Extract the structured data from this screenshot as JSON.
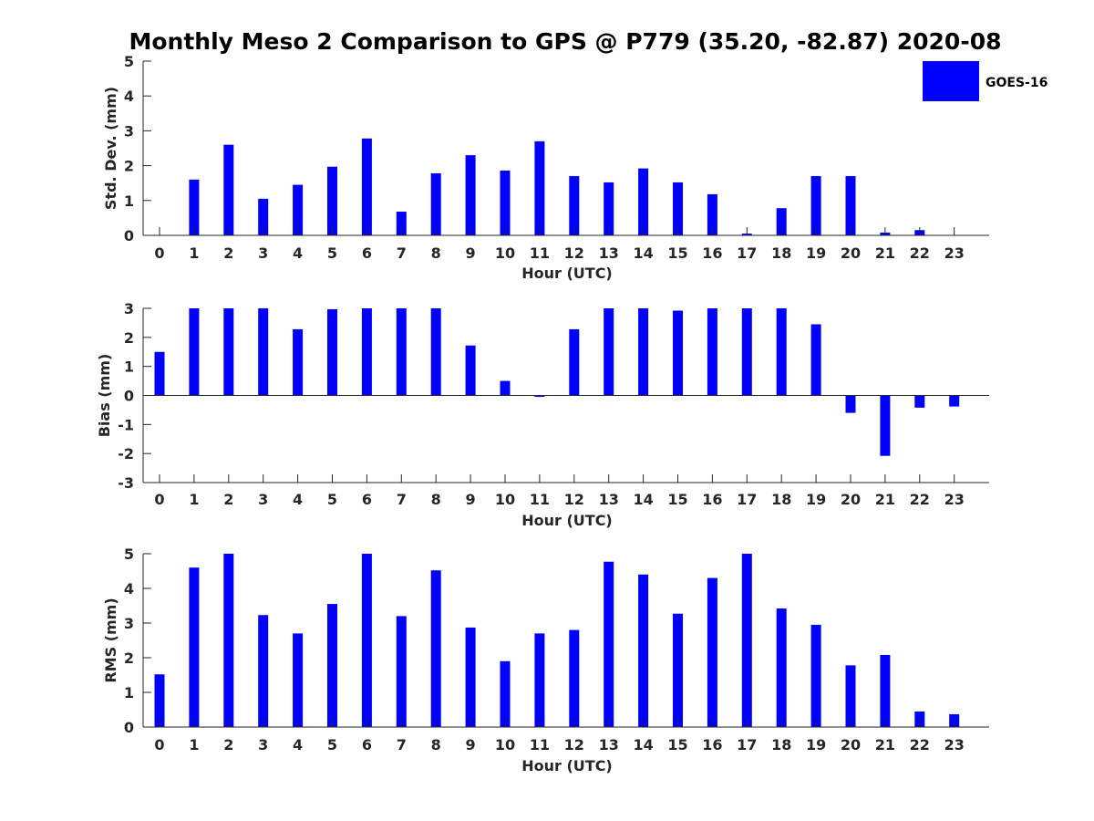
{
  "title": "Monthly Meso 2 Comparison to GPS @ P779 (35.20, -82.87) 2020-08",
  "chart_data": [
    {
      "type": "bar",
      "categories": [
        "0",
        "1",
        "2",
        "3",
        "4",
        "5",
        "6",
        "7",
        "8",
        "9",
        "10",
        "11",
        "12",
        "13",
        "14",
        "15",
        "16",
        "17",
        "18",
        "19",
        "20",
        "21",
        "22",
        "23"
      ],
      "xlabel": "Hour (UTC)",
      "ylabel": "Std. Dev. (mm)",
      "ylim": [
        0,
        5
      ],
      "yticks": [
        "0",
        "1",
        "2",
        "3",
        "4",
        "5"
      ],
      "grid": false,
      "series": [
        {
          "name": "GOES-16",
          "values": [
            0,
            1.6,
            2.6,
            1.05,
            1.45,
            1.97,
            2.78,
            0.68,
            1.78,
            2.3,
            1.86,
            2.7,
            1.7,
            1.52,
            1.92,
            1.52,
            1.18,
            0.05,
            0.78,
            1.7,
            1.7,
            0.08,
            0.15,
            0
          ]
        }
      ],
      "legend": {
        "position": "top-right",
        "entries": [
          "GOES-16"
        ]
      }
    },
    {
      "type": "bar",
      "categories": [
        "0",
        "1",
        "2",
        "3",
        "4",
        "5",
        "6",
        "7",
        "8",
        "9",
        "10",
        "11",
        "12",
        "13",
        "14",
        "15",
        "16",
        "17",
        "18",
        "19",
        "20",
        "21",
        "22",
        "23"
      ],
      "xlabel": "Hour (UTC)",
      "ylabel": "Bias (mm)",
      "ylim": [
        -3,
        3
      ],
      "yticks": [
        "-3",
        "-2",
        "-1",
        "0",
        "1",
        "2",
        "3"
      ],
      "grid": false,
      "series": [
        {
          "name": "GOES-16",
          "values": [
            1.5,
            3,
            3,
            3,
            2.28,
            2.97,
            3,
            3,
            3,
            1.72,
            0.5,
            -0.05,
            2.28,
            3,
            3,
            2.92,
            3,
            3,
            3,
            2.45,
            -0.6,
            -2.08,
            -0.42,
            -0.38
          ]
        }
      ]
    },
    {
      "type": "bar",
      "categories": [
        "0",
        "1",
        "2",
        "3",
        "4",
        "5",
        "6",
        "7",
        "8",
        "9",
        "10",
        "11",
        "12",
        "13",
        "14",
        "15",
        "16",
        "17",
        "18",
        "19",
        "20",
        "21",
        "22",
        "23"
      ],
      "xlabel": "Hour (UTC)",
      "ylabel": "RMS (mm)",
      "ylim": [
        0,
        5
      ],
      "yticks": [
        "0",
        "1",
        "2",
        "3",
        "4",
        "5"
      ],
      "grid": false,
      "series": [
        {
          "name": "GOES-16",
          "values": [
            1.52,
            4.6,
            5,
            3.23,
            2.7,
            3.55,
            5,
            3.2,
            4.52,
            2.87,
            1.9,
            2.7,
            2.8,
            4.77,
            4.4,
            3.27,
            4.3,
            5,
            3.42,
            2.95,
            1.78,
            2.08,
            0.45,
            0.37
          ]
        }
      ]
    }
  ],
  "colors": {
    "bar": "#0000ff",
    "axis": "#262626"
  }
}
